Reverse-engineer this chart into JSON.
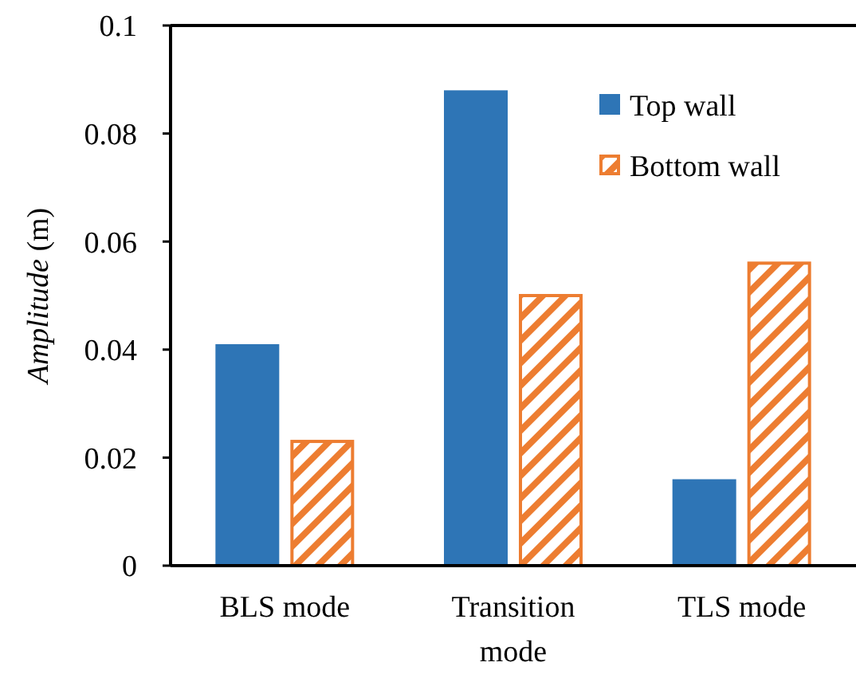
{
  "chart_data": {
    "type": "bar",
    "ylabel": "Amplitude (m)",
    "categories": [
      "BLS mode",
      "Transition mode",
      "TLS mode"
    ],
    "series": [
      {
        "name": "Top wall",
        "color": "#2e75b6",
        "values": [
          0.041,
          0.088,
          0.016
        ]
      },
      {
        "name": "Bottom wall",
        "color": "#ed7d31",
        "values": [
          0.023,
          0.05,
          0.056
        ]
      }
    ],
    "ylim": [
      0,
      0.1
    ],
    "yticks": [
      0,
      0.02,
      0.04,
      0.06,
      0.08,
      0.1
    ],
    "grid": false,
    "legend": "top right"
  }
}
